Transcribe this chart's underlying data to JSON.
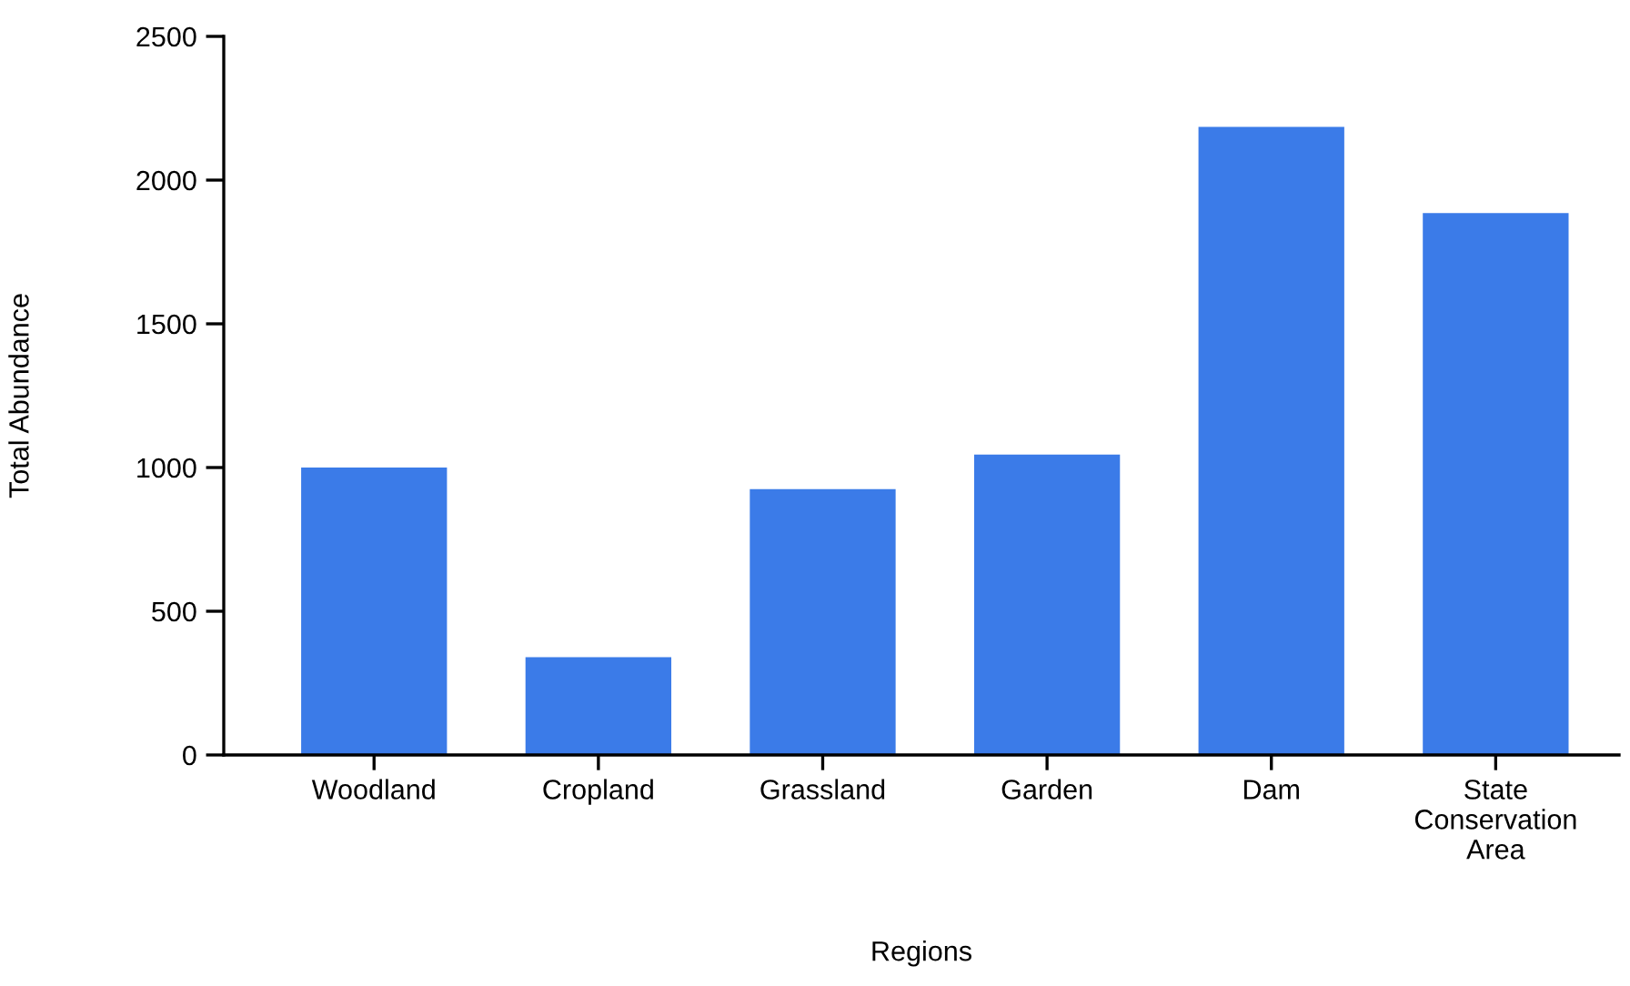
{
  "chart_data": {
    "type": "bar",
    "xlabel": "Regions",
    "ylabel": "Total Abundance",
    "categories": [
      "Woodland",
      "Cropland",
      "Grassland",
      "Garden",
      "Dam",
      "State\nConservation\nArea"
    ],
    "values": [
      1000,
      340,
      925,
      1045,
      2185,
      1885
    ],
    "color": "#3b7be8",
    "ylim": [
      0,
      2500
    ],
    "yticks": [
      0,
      500,
      1000,
      1500,
      2000,
      2500
    ],
    "grid": false,
    "legend": false
  }
}
